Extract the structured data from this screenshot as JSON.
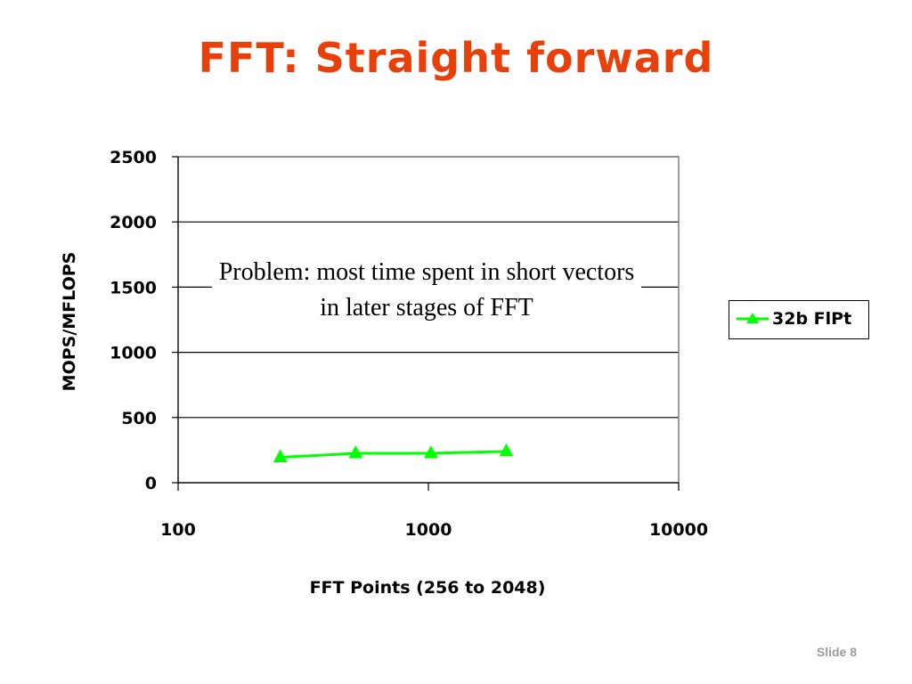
{
  "slide": {
    "title": "FFT: Straight forward",
    "slide_number": "Slide 8",
    "annotation": "Problem: most time spent in short vectors in later stages of FFT"
  },
  "colors": {
    "title": "#e8400a",
    "series": "#00ff00",
    "gridline": "#000000",
    "slide_number": "#9a9a9a"
  },
  "chart_data": {
    "type": "line",
    "title": "",
    "xlabel": "FFT Points (256 to 2048)",
    "ylabel": "MOPS/MFLOPS",
    "xscale": "log",
    "xlim": [
      100,
      10000
    ],
    "ylim": [
      0,
      2500
    ],
    "xticks": [
      "100",
      "1000",
      "10000"
    ],
    "yticks": [
      "0",
      "500",
      "1000",
      "1500",
      "2000",
      "2500"
    ],
    "grid": "horizontal",
    "legend_position": "right",
    "series": [
      {
        "name": "32b FlPt",
        "marker": "triangle",
        "color": "#00ff00",
        "x": [
          256,
          512,
          1024,
          2048
        ],
        "y": [
          195,
          225,
          225,
          240
        ]
      }
    ]
  }
}
